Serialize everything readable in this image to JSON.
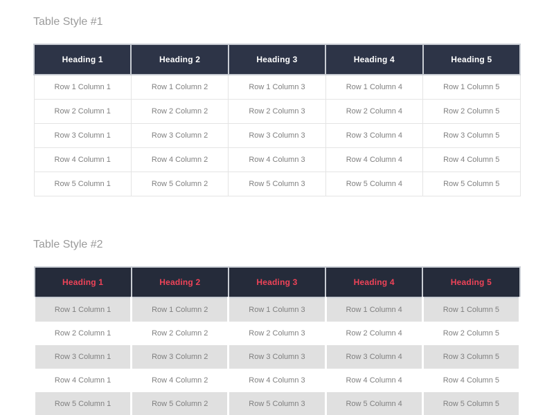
{
  "colors": {
    "page_background": "#ffffff",
    "section_title": "#9b9b9b",
    "table1_header_bg": "#2d3447",
    "table1_header_text": "#ffffff",
    "table1_body_border": "#e4e4e4",
    "table2_header_bg": "#252b3a",
    "table2_header_text": "#ef4358",
    "table2_stripe": "#e0e0e0",
    "body_text": "#7f7f7f",
    "header_cell_border": "#c9cdd4"
  },
  "sections": [
    {
      "title": "Table Style #1",
      "style": "bordered",
      "headers": [
        "Heading 1",
        "Heading 2",
        "Heading 3",
        "Heading 4",
        "Heading 5"
      ],
      "rows": [
        [
          "Row 1 Column 1",
          "Row 1 Column 2",
          "Row 1 Column 3",
          "Row 1 Column 4",
          "Row 1 Column 5"
        ],
        [
          "Row 2 Column 1",
          "Row 2 Column 2",
          "Row 2 Column 3",
          "Row 2 Column 4",
          "Row 2 Column 5"
        ],
        [
          "Row 3 Column 1",
          "Row 3 Column 2",
          "Row 3 Column 3",
          "Row 3 Column 4",
          "Row 3 Column 5"
        ],
        [
          "Row 4 Column 1",
          "Row 4 Column 2",
          "Row 4 Column 3",
          "Row 4 Column 4",
          "Row 4 Column 5"
        ],
        [
          "Row 5 Column 1",
          "Row 5 Column 2",
          "Row 5 Column 3",
          "Row 5 Column 4",
          "Row 5 Column 5"
        ]
      ]
    },
    {
      "title": "Table Style #2",
      "style": "striped",
      "headers": [
        "Heading 1",
        "Heading 2",
        "Heading 3",
        "Heading 4",
        "Heading 5"
      ],
      "rows": [
        [
          "Row 1 Column 1",
          "Row 1 Column 2",
          "Row 1 Column 3",
          "Row 1 Column 4",
          "Row 1 Column 5"
        ],
        [
          "Row 2 Column 1",
          "Row 2 Column 2",
          "Row 2 Column 3",
          "Row 2 Column 4",
          "Row 2 Column 5"
        ],
        [
          "Row 3 Column 1",
          "Row 3 Column 2",
          "Row 3 Column 3",
          "Row 3 Column 4",
          "Row 3 Column 5"
        ],
        [
          "Row 4 Column 1",
          "Row 4 Column 2",
          "Row 4 Column 3",
          "Row 4 Column 4",
          "Row 4 Column 5"
        ],
        [
          "Row 5 Column 1",
          "Row 5 Column 2",
          "Row 5 Column 3",
          "Row 5 Column 4",
          "Row 5 Column 5"
        ]
      ]
    }
  ]
}
